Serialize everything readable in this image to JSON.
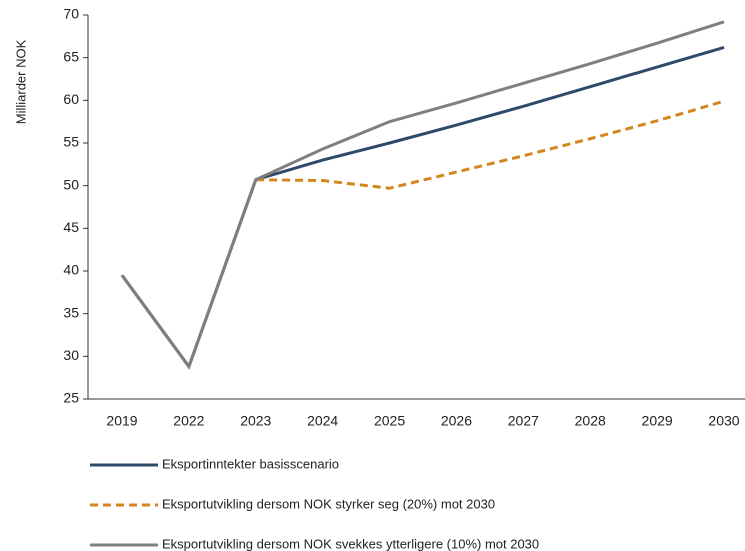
{
  "chart_data": {
    "type": "line",
    "y_label": "Milliarder NOK",
    "categories": [
      "2019",
      "2022",
      "2023",
      "2024",
      "2025",
      "2026",
      "2027",
      "2028",
      "2029",
      "2030"
    ],
    "series": [
      {
        "name": "Eksportinntekter basisscenario",
        "color": "#2e4a6b",
        "line_style": "solid",
        "values": [
          39.5,
          28.8,
          50.7,
          53.0,
          55.0,
          57.1,
          59.3,
          61.6,
          63.9,
          66.2
        ]
      },
      {
        "name": "Eksportutvikling dersom NOK styrker seg (20%) mot 2030",
        "color": "#d4861e",
        "line_style": "dashed",
        "values": [
          39.5,
          28.8,
          50.7,
          50.6,
          49.7,
          51.6,
          53.5,
          55.5,
          57.6,
          59.9
        ]
      },
      {
        "name": "Eksportutvikling dersom NOK svekkes ytterligere (10%) mot 2030",
        "color": "#7f7f7f",
        "line_style": "solid",
        "values": [
          39.5,
          28.8,
          50.7,
          54.3,
          57.5,
          59.7,
          62.0,
          64.3,
          66.7,
          69.2
        ]
      }
    ],
    "ylim": [
      25,
      70
    ],
    "yticks": [
      25,
      30,
      35,
      40,
      45,
      50,
      55,
      60,
      65,
      70
    ],
    "grid": false,
    "legend": "bottom"
  }
}
